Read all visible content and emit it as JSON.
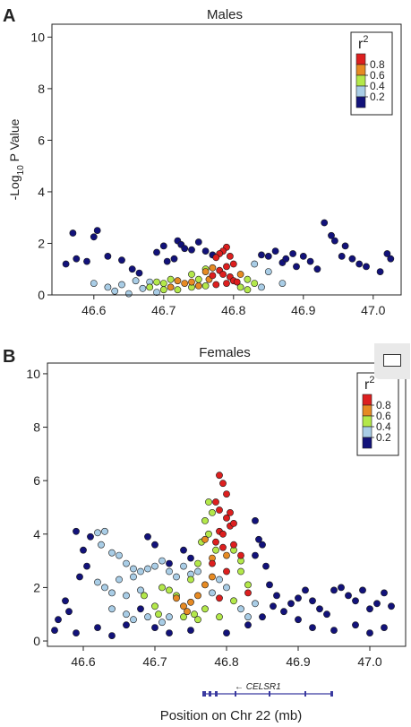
{
  "panel_letters": [
    "A",
    "B"
  ],
  "legend": {
    "title_base": "r",
    "title_sup": "2",
    "ticks": [
      "0.8",
      "0.6",
      "0.4",
      "0.2"
    ],
    "colors": [
      "#dd1f1f",
      "#e68a23",
      "#b3e84a",
      "#a9cde6",
      "#12127a"
    ]
  },
  "gene": {
    "label": "CELSR1",
    "arrow": "←"
  },
  "x_axis_label": "Position on Chr 22 (mb)",
  "y_axis_label": {
    "main": "-Log",
    "sub": "10",
    "rest": " P Value"
  },
  "chart_data": [
    {
      "type": "scatter",
      "title": "Males",
      "xlabel": "",
      "ylabel": "-Log10 P Value",
      "xlim": [
        46.54,
        47.04
      ],
      "ylim": [
        0,
        10.5
      ],
      "x_ticks": [
        46.6,
        46.7,
        46.8,
        46.9,
        47.0
      ],
      "x_tick_labels": [
        "46.6",
        "46.7",
        "46.8",
        "46.9",
        "47.0"
      ],
      "y_ticks": [
        0,
        2,
        4,
        6,
        8,
        10
      ],
      "y_tick_labels": [
        "0",
        "2",
        "4",
        "6",
        "8",
        "10"
      ],
      "legend_position": "top-right",
      "series": [
        {
          "name": "0.8-1.0",
          "color": "#dd1f1f",
          "points": [
            [
              46.79,
              1.85
            ],
            [
              46.785,
              1.7
            ],
            [
              46.78,
              1.6
            ],
            [
              46.795,
              1.5
            ],
            [
              46.775,
              1.45
            ],
            [
              46.8,
              1.2
            ],
            [
              46.79,
              1.1
            ],
            [
              46.78,
              0.95
            ],
            [
              46.785,
              0.8
            ],
            [
              46.77,
              0.75
            ],
            [
              46.795,
              0.7
            ],
            [
              46.8,
              0.55
            ],
            [
              46.79,
              0.45
            ],
            [
              46.775,
              0.4
            ],
            [
              46.805,
              0.5
            ]
          ]
        },
        {
          "name": "0.6-0.8",
          "color": "#e68a23",
          "points": [
            [
              46.72,
              0.55
            ],
            [
              46.73,
              0.45
            ],
            [
              46.74,
              0.5
            ],
            [
              46.76,
              0.9
            ],
            [
              46.77,
              1.05
            ],
            [
              46.765,
              0.6
            ],
            [
              46.81,
              0.8
            ],
            [
              46.75,
              0.35
            ],
            [
              46.71,
              0.3
            ]
          ]
        },
        {
          "name": "0.4-0.6",
          "color": "#b3e84a",
          "points": [
            [
              46.68,
              0.3
            ],
            [
              46.69,
              0.5
            ],
            [
              46.7,
              0.45
            ],
            [
              46.71,
              0.6
            ],
            [
              46.72,
              0.2
            ],
            [
              46.74,
              0.8
            ],
            [
              46.75,
              0.6
            ],
            [
              46.76,
              0.35
            ],
            [
              46.82,
              0.6
            ],
            [
              46.81,
              0.3
            ],
            [
              46.83,
              0.45
            ],
            [
              46.76,
              1.0
            ],
            [
              46.74,
              0.3
            ],
            [
              46.7,
              0.2
            ],
            [
              46.82,
              0.2
            ]
          ]
        },
        {
          "name": "0.2-0.4",
          "color": "#a9cde6",
          "points": [
            [
              46.62,
              0.3
            ],
            [
              46.63,
              0.15
            ],
            [
              46.64,
              0.4
            ],
            [
              46.66,
              0.55
            ],
            [
              46.67,
              0.25
            ],
            [
              46.68,
              0.5
            ],
            [
              46.69,
              0.1
            ],
            [
              46.65,
              0.05
            ],
            [
              46.6,
              0.45
            ],
            [
              46.84,
              0.3
            ],
            [
              46.83,
              1.2
            ],
            [
              46.85,
              0.9
            ],
            [
              46.87,
              0.45
            ]
          ]
        },
        {
          "name": "0.0-0.2",
          "color": "#12127a",
          "points": [
            [
              46.57,
              2.4
            ],
            [
              46.6,
              2.25
            ],
            [
              46.605,
              2.5
            ],
            [
              46.72,
              2.1
            ],
            [
              46.725,
              1.95
            ],
            [
              46.73,
              1.8
            ],
            [
              46.69,
              1.65
            ],
            [
              46.7,
              1.9
            ],
            [
              46.74,
              1.75
            ],
            [
              46.76,
              1.7
            ],
            [
              46.77,
              1.55
            ],
            [
              46.75,
              2.05
            ],
            [
              46.715,
              1.4
            ],
            [
              46.705,
              1.3
            ],
            [
              46.885,
              1.6
            ],
            [
              46.9,
              1.5
            ],
            [
              46.91,
              1.3
            ],
            [
              46.93,
              2.8
            ],
            [
              46.94,
              2.3
            ],
            [
              46.945,
              2.1
            ],
            [
              46.96,
              1.9
            ],
            [
              46.955,
              1.5
            ],
            [
              46.97,
              1.4
            ],
            [
              46.98,
              1.2
            ],
            [
              46.99,
              1.1
            ],
            [
              47.01,
              0.9
            ],
            [
              47.02,
              1.6
            ],
            [
              47.025,
              1.4
            ],
            [
              46.56,
              1.2
            ],
            [
              46.575,
              1.4
            ],
            [
              46.59,
              1.3
            ],
            [
              46.62,
              1.5
            ],
            [
              46.64,
              1.35
            ],
            [
              46.655,
              1.0
            ],
            [
              46.665,
              0.85
            ],
            [
              46.86,
              1.7
            ],
            [
              46.87,
              1.25
            ],
            [
              46.875,
              1.4
            ],
            [
              46.89,
              1.1
            ],
            [
              46.92,
              1.0
            ],
            [
              46.85,
              1.5
            ],
            [
              46.84,
              1.55
            ]
          ]
        }
      ]
    },
    {
      "type": "scatter",
      "title": "Females",
      "xlabel": "Position on Chr 22 (mb)",
      "ylabel": "",
      "xlim": [
        46.55,
        47.05
      ],
      "ylim": [
        -0.2,
        10.4
      ],
      "x_ticks": [
        46.6,
        46.7,
        46.8,
        46.9,
        47.0
      ],
      "x_tick_labels": [
        "46.6",
        "46.7",
        "46.8",
        "46.9",
        "47.0"
      ],
      "y_ticks": [
        0,
        2,
        4,
        6,
        8,
        10
      ],
      "y_tick_labels": [
        "0",
        "2",
        "4",
        "6",
        "8",
        "10"
      ],
      "legend_position": "top-right",
      "series": [
        {
          "name": "0.8-1.0",
          "color": "#dd1f1f",
          "points": [
            [
              46.79,
              6.2
            ],
            [
              46.795,
              5.9
            ],
            [
              46.8,
              5.5
            ],
            [
              46.785,
              5.2
            ],
            [
              46.79,
              4.9
            ],
            [
              46.8,
              4.6
            ],
            [
              46.805,
              4.3
            ],
            [
              46.79,
              4.1
            ],
            [
              46.785,
              3.7
            ],
            [
              46.795,
              3.5
            ],
            [
              46.81,
              4.4
            ],
            [
              46.81,
              3.6
            ],
            [
              46.82,
              3.2
            ],
            [
              46.78,
              2.9
            ],
            [
              46.8,
              2.6
            ],
            [
              46.83,
              1.8
            ],
            [
              46.79,
              1.6
            ],
            [
              46.805,
              4.8
            ],
            [
              46.795,
              4.0
            ]
          ]
        },
        {
          "name": "0.6-0.8",
          "color": "#e68a23",
          "points": [
            [
              46.74,
              1.3
            ],
            [
              46.745,
              1.1
            ],
            [
              46.75,
              1.45
            ],
            [
              46.77,
              2.1
            ],
            [
              46.78,
              2.4
            ],
            [
              46.76,
              1.7
            ],
            [
              46.8,
              3.2
            ],
            [
              46.73,
              1.6
            ],
            [
              46.77,
              3.8
            ],
            [
              46.78,
              3.1
            ]
          ]
        },
        {
          "name": "0.4-0.6",
          "color": "#b3e84a",
          "points": [
            [
              46.775,
              5.2
            ],
            [
              46.78,
              4.8
            ],
            [
              46.77,
              4.5
            ],
            [
              46.775,
              4.0
            ],
            [
              46.765,
              3.7
            ],
            [
              46.785,
              3.4
            ],
            [
              46.82,
              3.0
            ],
            [
              46.82,
              2.6
            ],
            [
              46.81,
              3.4
            ],
            [
              46.76,
              2.9
            ],
            [
              46.75,
              2.3
            ],
            [
              46.72,
              1.9
            ],
            [
              46.7,
              1.3
            ],
            [
              46.705,
              1.0
            ],
            [
              46.73,
              1.7
            ],
            [
              46.74,
              0.9
            ],
            [
              46.76,
              0.8
            ],
            [
              46.79,
              0.9
            ],
            [
              46.81,
              1.5
            ],
            [
              46.83,
              2.1
            ],
            [
              46.77,
              1.2
            ],
            [
              46.685,
              1.7
            ],
            [
              46.71,
              2.0
            ],
            [
              46.755,
              1.0
            ]
          ]
        },
        {
          "name": "0.2-0.4",
          "color": "#a9cde6",
          "points": [
            [
              46.62,
              4.05
            ],
            [
              46.63,
              4.1
            ],
            [
              46.625,
              3.6
            ],
            [
              46.64,
              3.3
            ],
            [
              46.65,
              3.2
            ],
            [
              46.66,
              2.9
            ],
            [
              46.67,
              2.7
            ],
            [
              46.68,
              2.6
            ],
            [
              46.65,
              2.3
            ],
            [
              46.67,
              2.4
            ],
            [
              46.62,
              2.2
            ],
            [
              46.63,
              2.0
            ],
            [
              46.64,
              1.8
            ],
            [
              46.66,
              1.7
            ],
            [
              46.68,
              1.9
            ],
            [
              46.69,
              2.7
            ],
            [
              46.7,
              2.8
            ],
            [
              46.71,
              3.0
            ],
            [
              46.72,
              2.6
            ],
            [
              46.74,
              2.8
            ],
            [
              46.73,
              2.4
            ],
            [
              46.75,
              2.5
            ],
            [
              46.64,
              1.2
            ],
            [
              46.66,
              1.0
            ],
            [
              46.67,
              0.8
            ],
            [
              46.69,
              0.9
            ],
            [
              46.71,
              0.7
            ],
            [
              46.72,
              0.9
            ],
            [
              46.78,
              1.8
            ],
            [
              46.82,
              1.2
            ],
            [
              46.83,
              0.9
            ],
            [
              46.84,
              1.4
            ],
            [
              46.76,
              2.6
            ],
            [
              46.79,
              2.3
            ],
            [
              46.8,
              2.0
            ]
          ]
        },
        {
          "name": "0.0-0.2",
          "color": "#12127a",
          "points": [
            [
              46.59,
              4.1
            ],
            [
              46.61,
              3.9
            ],
            [
              46.6,
              3.4
            ],
            [
              46.605,
              2.8
            ],
            [
              46.595,
              2.4
            ],
            [
              46.575,
              1.5
            ],
            [
              46.58,
              1.1
            ],
            [
              46.565,
              0.8
            ],
            [
              46.56,
              0.4
            ],
            [
              46.59,
              0.3
            ],
            [
              46.62,
              0.5
            ],
            [
              46.64,
              0.2
            ],
            [
              46.84,
              4.5
            ],
            [
              46.845,
              3.8
            ],
            [
              46.85,
              3.6
            ],
            [
              46.84,
              3.2
            ],
            [
              46.855,
              2.8
            ],
            [
              46.86,
              2.1
            ],
            [
              46.87,
              1.7
            ],
            [
              46.865,
              1.3
            ],
            [
              46.88,
              1.1
            ],
            [
              46.89,
              1.4
            ],
            [
              46.9,
              1.6
            ],
            [
              46.91,
              1.9
            ],
            [
              46.92,
              1.5
            ],
            [
              46.93,
              1.2
            ],
            [
              46.94,
              1.0
            ],
            [
              46.95,
              1.9
            ],
            [
              46.96,
              2.0
            ],
            [
              46.97,
              1.7
            ],
            [
              46.98,
              1.5
            ],
            [
              46.99,
              1.9
            ],
            [
              47.0,
              1.2
            ],
            [
              47.01,
              1.4
            ],
            [
              47.02,
              1.8
            ],
            [
              47.03,
              1.3
            ],
            [
              46.9,
              0.8
            ],
            [
              46.92,
              0.5
            ],
            [
              46.95,
              0.4
            ],
            [
              46.98,
              0.6
            ],
            [
              47.0,
              0.3
            ],
            [
              47.02,
              0.5
            ],
            [
              46.72,
              0.3
            ],
            [
              46.7,
              0.5
            ],
            [
              46.75,
              0.4
            ],
            [
              46.8,
              0.3
            ],
            [
              46.83,
              0.6
            ],
            [
              46.85,
              0.9
            ],
            [
              46.74,
              3.4
            ],
            [
              46.75,
              3.1
            ],
            [
              46.69,
              3.9
            ],
            [
              46.7,
              3.6
            ],
            [
              46.68,
              1.2
            ],
            [
              46.66,
              0.6
            ],
            [
              46.72,
              2.9
            ]
          ]
        }
      ]
    }
  ]
}
